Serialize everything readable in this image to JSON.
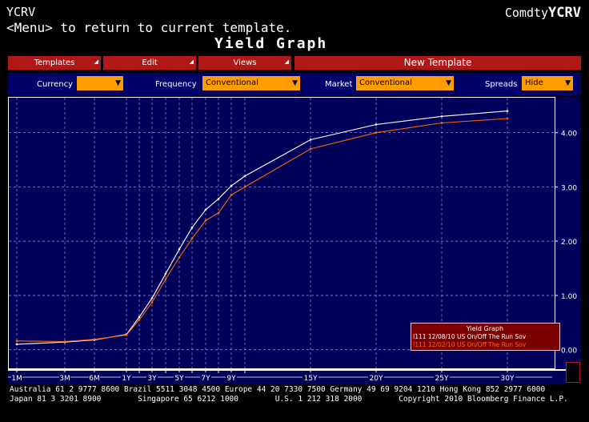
{
  "header": {
    "screen_code": "YCRV",
    "menu_hint": "<Menu> to return to current template.",
    "title": "Yield Graph",
    "brand_prefix": "Comdty",
    "brand_code": "YCRV"
  },
  "toolbar": {
    "templates": "Templates",
    "edit": "Edit",
    "views": "Views",
    "new_template": "New Template"
  },
  "filters": {
    "currency_label": "Currency",
    "currency_value": "",
    "frequency_label": "Frequency",
    "frequency_value": "Conventional",
    "market_label": "Market",
    "market_value": "Conventional",
    "spreads_label": "Spreads",
    "spreads_value": "Hide"
  },
  "colors": {
    "accent_red": "#b01818",
    "panel_blue": "#00005a",
    "field_orange": "#ff9c00",
    "series_current": "#ffffff",
    "series_prior": "#ff6a00"
  },
  "chart_data": {
    "type": "line",
    "title": "",
    "xlabel": "",
    "ylabel": "",
    "ylim": [
      -0.3,
      4.6
    ],
    "y_ticks": [
      "0.00",
      "1.00",
      "2.00",
      "3.00",
      "4.00"
    ],
    "y_tick_values": [
      0,
      1,
      2,
      3,
      4
    ],
    "x_ticks": [
      "1M",
      "3M",
      "6M",
      "1Y",
      "2Y",
      "3Y",
      "4Y",
      "5Y",
      "6Y",
      "7Y",
      "8Y",
      "9Y",
      "10Y",
      "15Y",
      "20Y",
      "25Y",
      "30Y"
    ],
    "x_tick_labels_shown": [
      "1M",
      "3M",
      "6M",
      "1Y",
      "3Y",
      "5Y",
      "7Y",
      "9Y",
      "15Y",
      "20Y",
      "25Y",
      "30Y"
    ],
    "grid": true,
    "legend_placement": "bottom-right",
    "legend_title": "Yield Graph",
    "series": [
      {
        "name": "I111 12/08/10   US On/Off The Run Sov",
        "color": "#ffffff",
        "tenors": [
          "1M",
          "3M",
          "6M",
          "1Y",
          "2Y",
          "3Y",
          "4Y",
          "5Y",
          "6Y",
          "7Y",
          "8Y",
          "9Y",
          "10Y",
          "15Y",
          "20Y",
          "25Y",
          "30Y"
        ],
        "values": [
          0.1,
          0.14,
          0.18,
          0.28,
          0.6,
          0.95,
          1.4,
          1.85,
          2.25,
          2.58,
          2.78,
          3.02,
          3.2,
          3.87,
          4.15,
          4.3,
          4.4
        ]
      },
      {
        "name": "I111 12/02/10   US On/Off The Run Sov",
        "color": "#ff6a00",
        "tenors": [
          "1M",
          "3M",
          "6M",
          "1Y",
          "2Y",
          "3Y",
          "4Y",
          "5Y",
          "6Y",
          "7Y",
          "8Y",
          "9Y",
          "10Y",
          "15Y",
          "20Y",
          "25Y",
          "30Y"
        ],
        "values": [
          0.16,
          0.15,
          0.19,
          0.27,
          0.55,
          0.87,
          1.3,
          1.7,
          2.05,
          2.38,
          2.52,
          2.85,
          3.0,
          3.7,
          4.0,
          4.18,
          4.26
        ]
      }
    ]
  },
  "footer": {
    "line1": "Australia 61 2 9777 8600 Brazil 5511 3048 4500 Europe 44 20 7330 7500 Germany 49 69 9204 1210 Hong Kong 852 2977 6000",
    "line2": "Japan 81 3 3201 8900        Singapore 65 6212 1000        U.S. 1 212 318 2000        Copyright 2010 Bloomberg Finance L.P."
  }
}
